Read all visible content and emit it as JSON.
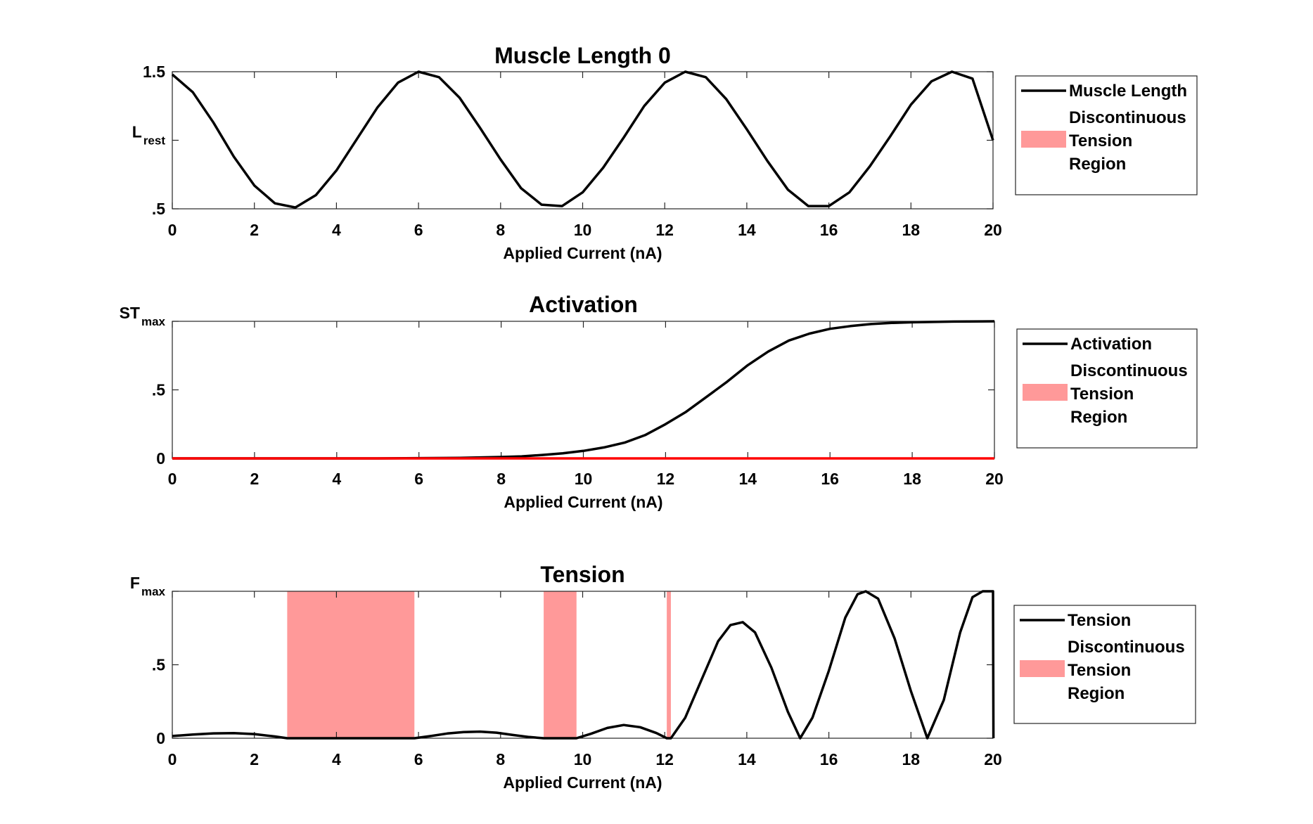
{
  "colors": {
    "curve": "#000000",
    "region_fill": "#ff9999",
    "activation_zero_line": "#ff0000",
    "axes": "#262626",
    "background": "#ffffff"
  },
  "chart_data": [
    {
      "type": "line",
      "title": "Muscle Length 0",
      "xlabel": "Applied Current (nA)",
      "xlim": [
        0,
        20
      ],
      "xticks": [
        0,
        2,
        4,
        6,
        8,
        10,
        12,
        14,
        16,
        18,
        20
      ],
      "ylim": [
        0.5,
        1.5
      ],
      "yticks": [
        {
          "value": 0.5,
          "main": ".5",
          "sub": ""
        },
        {
          "value": 1.0,
          "main": "L",
          "sub": "rest"
        },
        {
          "value": 1.5,
          "main": "1.5",
          "sub": ""
        }
      ],
      "legend": {
        "position": "outside-right",
        "entries": [
          {
            "kind": "line",
            "label_lines": [
              "Muscle Length"
            ]
          },
          {
            "kind": "patch",
            "label_lines": [
              "Discontinuous",
              "Tension",
              "Region"
            ]
          }
        ]
      },
      "series": [
        {
          "kind": "line",
          "x": [
            0,
            0.5,
            1,
            1.5,
            2,
            2.5,
            3,
            3.5,
            4,
            4.5,
            5,
            5.5,
            6,
            6.5,
            7,
            7.5,
            8,
            8.5,
            9,
            9.5,
            10,
            10.5,
            11,
            11.5,
            12,
            12.5,
            13,
            13.5,
            14,
            14.5,
            15,
            15.5,
            16,
            16.5,
            17,
            17.5,
            18,
            18.5,
            19,
            19.5,
            20
          ],
          "y": [
            1.48,
            1.35,
            1.13,
            0.88,
            0.67,
            0.54,
            0.51,
            0.6,
            0.78,
            1.01,
            1.24,
            1.42,
            1.5,
            1.46,
            1.31,
            1.09,
            0.86,
            0.65,
            0.53,
            0.52,
            0.62,
            0.8,
            1.02,
            1.25,
            1.42,
            1.5,
            1.46,
            1.3,
            1.08,
            0.85,
            0.64,
            0.52,
            0.52,
            0.62,
            0.81,
            1.03,
            1.26,
            1.43,
            1.5,
            1.45,
            1.0
          ]
        }
      ]
    },
    {
      "type": "line",
      "title": "Activation",
      "xlabel": "Applied Current (nA)",
      "xlim": [
        0,
        20
      ],
      "xticks": [
        0,
        2,
        4,
        6,
        8,
        10,
        12,
        14,
        16,
        18,
        20
      ],
      "ylim": [
        0,
        1
      ],
      "yticks": [
        {
          "value": 0,
          "main": "0",
          "sub": ""
        },
        {
          "value": 0.5,
          "main": ".5",
          "sub": ""
        },
        {
          "value": 1,
          "main": "ST",
          "sub": "max"
        }
      ],
      "legend": {
        "position": "outside-right",
        "entries": [
          {
            "kind": "line",
            "label_lines": [
              "Activation"
            ]
          },
          {
            "kind": "patch",
            "label_lines": [
              "Discontinuous",
              "Tension",
              "Region"
            ]
          }
        ]
      },
      "series": [
        {
          "kind": "line",
          "x": [
            0,
            5,
            6,
            7,
            8,
            8.5,
            9,
            9.5,
            10,
            10.5,
            11,
            11.5,
            12,
            12.5,
            13,
            13.5,
            14,
            14.5,
            15,
            15.5,
            16,
            16.5,
            17,
            17.5,
            18,
            19,
            20
          ],
          "y": [
            0,
            0,
            0.002,
            0.004,
            0.01,
            0.015,
            0.025,
            0.037,
            0.055,
            0.08,
            0.115,
            0.17,
            0.25,
            0.34,
            0.45,
            0.56,
            0.68,
            0.78,
            0.86,
            0.91,
            0.945,
            0.965,
            0.98,
            0.988,
            0.993,
            0.998,
            1.0
          ]
        },
        {
          "kind": "zero-line",
          "x": [
            0,
            20
          ],
          "y": [
            0,
            0
          ]
        }
      ]
    },
    {
      "type": "line",
      "title": "Tension",
      "xlabel": "Applied Current (nA)",
      "xlim": [
        0,
        20
      ],
      "xticks": [
        0,
        2,
        4,
        6,
        8,
        10,
        12,
        14,
        16,
        18,
        20
      ],
      "ylim": [
        0,
        1
      ],
      "yticks": [
        {
          "value": 0,
          "main": "0",
          "sub": ""
        },
        {
          "value": 0.5,
          "main": ".5",
          "sub": ""
        },
        {
          "value": 1,
          "main": "F",
          "sub": "max"
        }
      ],
      "legend": {
        "position": "outside-right",
        "entries": [
          {
            "kind": "line",
            "label_lines": [
              "Tension"
            ]
          },
          {
            "kind": "patch",
            "label_lines": [
              "Discontinuous",
              "Tension",
              "Region"
            ]
          }
        ]
      },
      "regions": [
        {
          "x0": 2.8,
          "x1": 5.9
        },
        {
          "x0": 9.05,
          "x1": 9.85
        },
        {
          "x0": 12.05,
          "x1": 12.15
        }
      ],
      "series": [
        {
          "kind": "line",
          "x": [
            0,
            0.5,
            1,
            1.5,
            2,
            2.5,
            2.8,
            5.9,
            6.3,
            6.7,
            7.1,
            7.5,
            7.9,
            8.3,
            8.7,
            9.05,
            9.85,
            10.2,
            10.6,
            11.0,
            11.4,
            11.8,
            12.05,
            12.15,
            12.5,
            12.9,
            13.3,
            13.6,
            13.9,
            14.2,
            14.6,
            15.0,
            15.3,
            15.6,
            16.0,
            16.4,
            16.7,
            16.9,
            17.2,
            17.6,
            18.0,
            18.4,
            18.8,
            19.2,
            19.5,
            19.75,
            20.0,
            20.01
          ],
          "y": [
            0.015,
            0.025,
            0.033,
            0.035,
            0.028,
            0.012,
            0.0,
            0.0,
            0.015,
            0.032,
            0.042,
            0.045,
            0.038,
            0.022,
            0.008,
            0.0,
            0.0,
            0.03,
            0.07,
            0.09,
            0.075,
            0.035,
            0.0,
            0.0,
            0.14,
            0.4,
            0.66,
            0.77,
            0.79,
            0.72,
            0.48,
            0.18,
            0.0,
            0.14,
            0.46,
            0.82,
            0.98,
            1.0,
            0.95,
            0.68,
            0.32,
            0.0,
            0.26,
            0.72,
            0.96,
            1.0,
            1.0,
            0.0
          ]
        }
      ]
    }
  ]
}
